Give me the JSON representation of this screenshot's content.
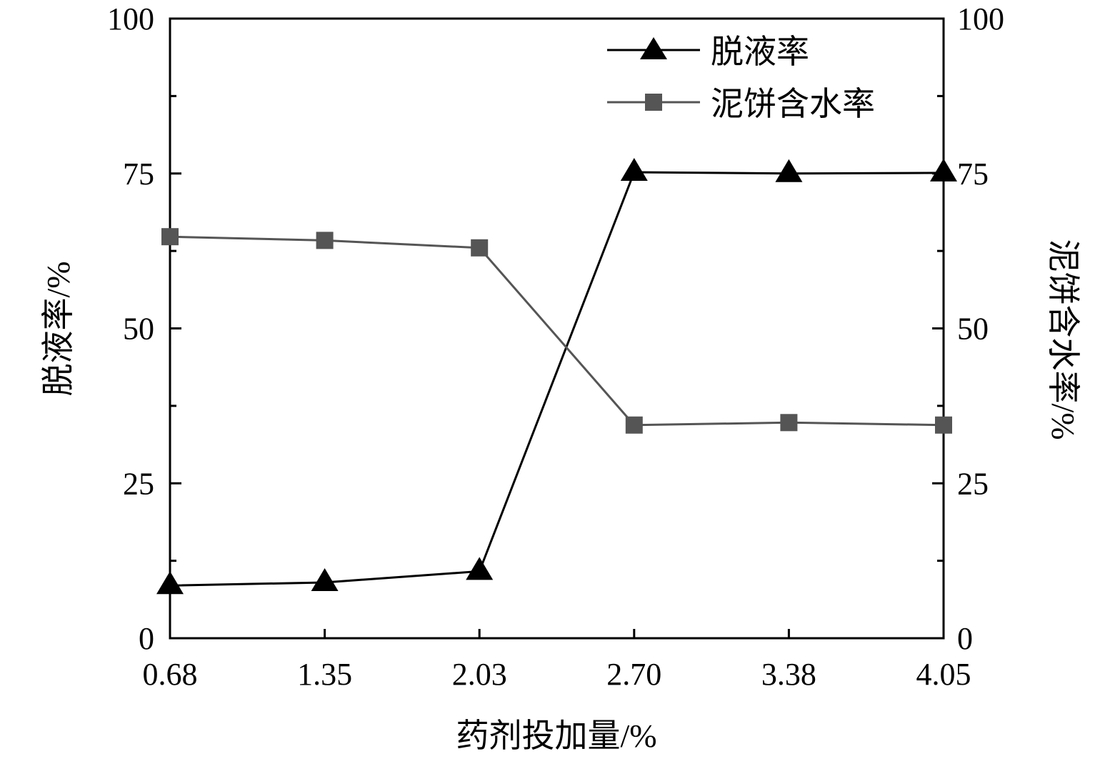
{
  "chart_data": {
    "type": "line",
    "xlabel": "药剂投加量/%",
    "ylabel_left": "脱液率/%",
    "ylabel_right": "泥饼含水率/%",
    "categories": [
      "0.68",
      "1.35",
      "2.03",
      "2.70",
      "3.38",
      "4.05"
    ],
    "ylim": [
      0,
      100
    ],
    "yticks": [
      "0",
      "25",
      "50",
      "75",
      "100"
    ],
    "legend_position": "top-right",
    "grid": false,
    "series": [
      {
        "name": "脱液率",
        "axis": "left",
        "marker": "triangle",
        "color": "#000000",
        "values": [
          8.5,
          9.0,
          10.8,
          75.2,
          75.0,
          75.1
        ]
      },
      {
        "name": "泥饼含水率",
        "axis": "right",
        "marker": "square",
        "color": "#555555",
        "values": [
          64.8,
          64.2,
          63.0,
          34.4,
          34.8,
          34.4
        ]
      }
    ]
  }
}
